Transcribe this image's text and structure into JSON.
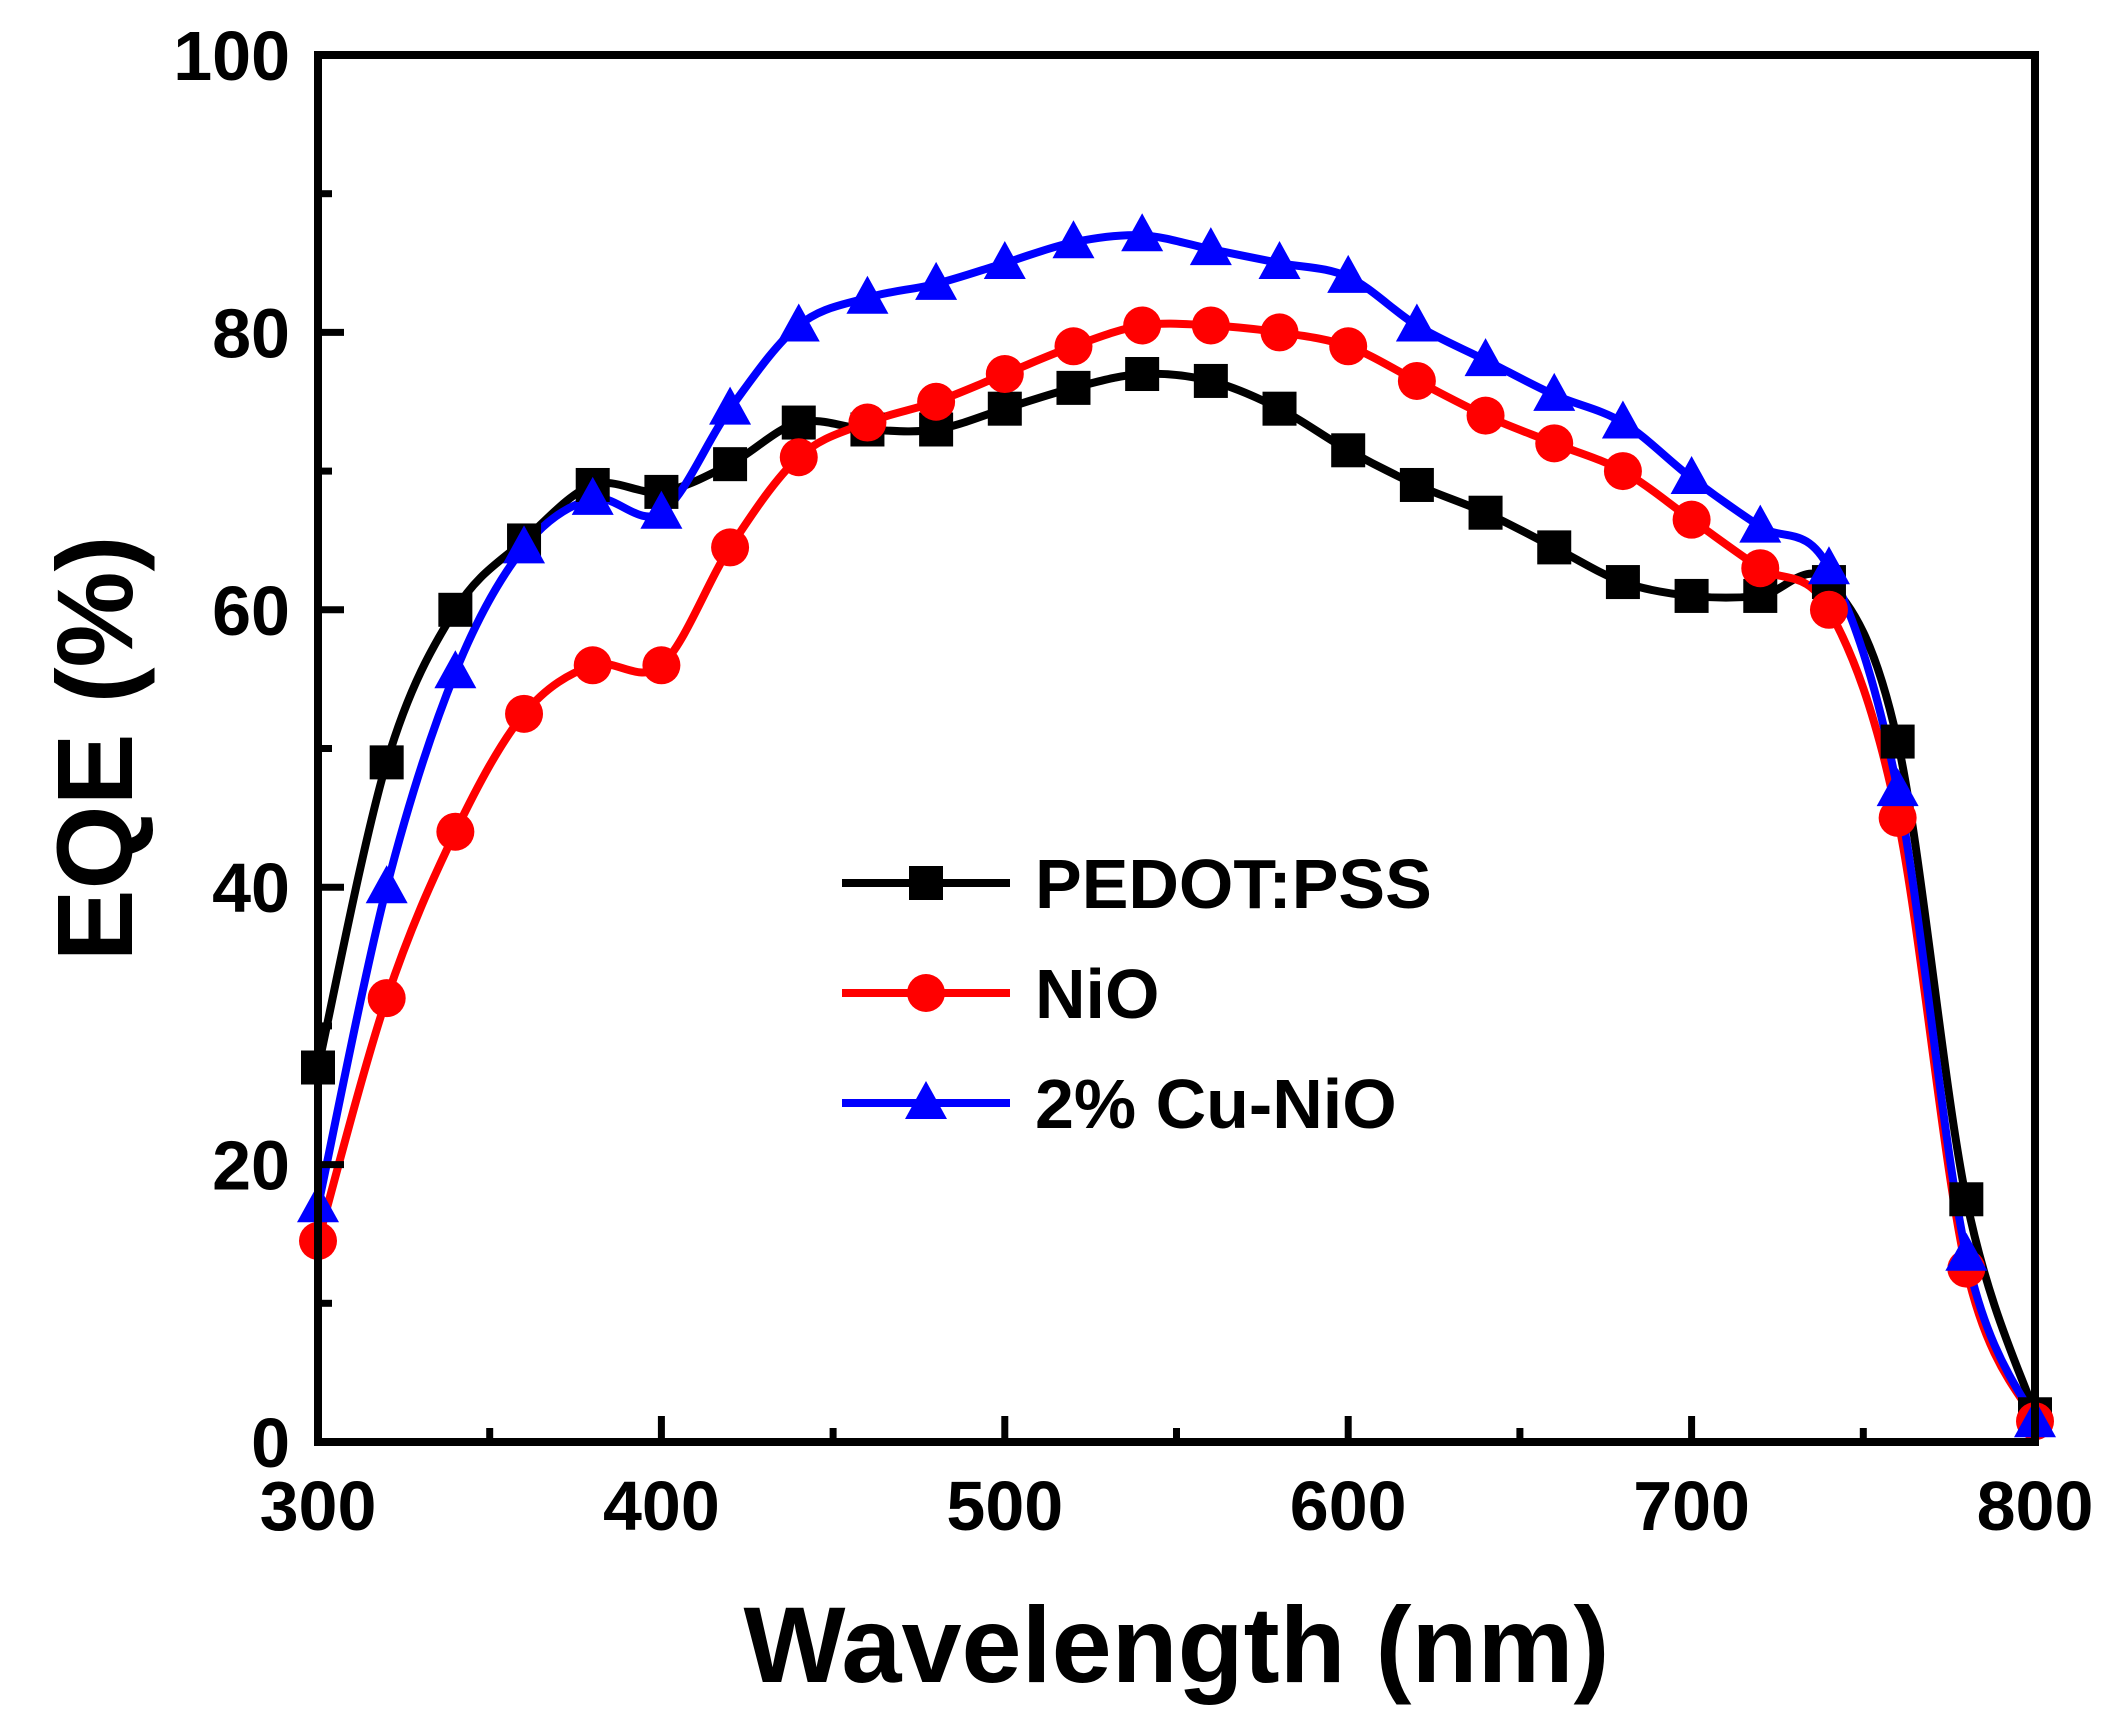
{
  "chart_data": {
    "type": "line",
    "title": "",
    "xlabel": "Wavelength (nm)",
    "ylabel": "EQE (%)",
    "xlim": [
      300,
      800
    ],
    "ylim": [
      0,
      100
    ],
    "xticks": [
      300,
      400,
      500,
      600,
      700,
      800
    ],
    "yticks": [
      0,
      20,
      40,
      60,
      80,
      100
    ],
    "xtick_labels": [
      "300",
      "400",
      "500",
      "600",
      "700",
      "800"
    ],
    "ytick_labels": [
      "0",
      "20",
      "40",
      "60",
      "80",
      "100"
    ],
    "legend_position": "center-right",
    "grid": false,
    "series": [
      {
        "name": "PEDOT:PSS",
        "color": "#000000",
        "marker": "square",
        "x": [
          300,
          320,
          340,
          360,
          380,
          400,
          420,
          440,
          460,
          480,
          500,
          520,
          540,
          560,
          580,
          600,
          620,
          640,
          660,
          680,
          700,
          720,
          740,
          760,
          780,
          800
        ],
        "y": [
          27,
          49,
          60,
          65,
          69,
          68.5,
          70.5,
          73.5,
          73,
          73,
          74.5,
          76,
          77,
          76.5,
          74.5,
          71.5,
          69,
          67,
          64.5,
          62,
          61,
          61,
          62,
          50.5,
          17.5,
          2
        ]
      },
      {
        "name": "NiO",
        "color": "#ff0000",
        "marker": "circle",
        "x": [
          300,
          320,
          340,
          360,
          380,
          400,
          420,
          440,
          460,
          480,
          500,
          520,
          540,
          560,
          580,
          600,
          620,
          640,
          660,
          680,
          700,
          720,
          740,
          760,
          780,
          800
        ],
        "y": [
          14.5,
          32,
          44,
          52.5,
          56,
          56,
          64.5,
          71,
          73.5,
          75,
          77,
          79,
          80.5,
          80.5,
          80,
          79,
          76.5,
          74,
          72,
          70,
          66.5,
          63,
          60,
          45,
          12.5,
          1.5
        ]
      },
      {
        "name": "2% Cu-NiO",
        "color": "#0000ff",
        "marker": "triangle",
        "x": [
          300,
          320,
          340,
          360,
          380,
          400,
          420,
          440,
          460,
          480,
          500,
          520,
          540,
          560,
          580,
          600,
          620,
          640,
          660,
          680,
          700,
          720,
          740,
          760,
          780,
          800
        ],
        "y": [
          17,
          40,
          55.5,
          64.5,
          68,
          67,
          74.5,
          80.5,
          82.5,
          83.5,
          85,
          86.5,
          87,
          86,
          85,
          84,
          80.5,
          78,
          75.5,
          73.5,
          69.5,
          66,
          63,
          47,
          13.5,
          1.5
        ]
      }
    ]
  }
}
